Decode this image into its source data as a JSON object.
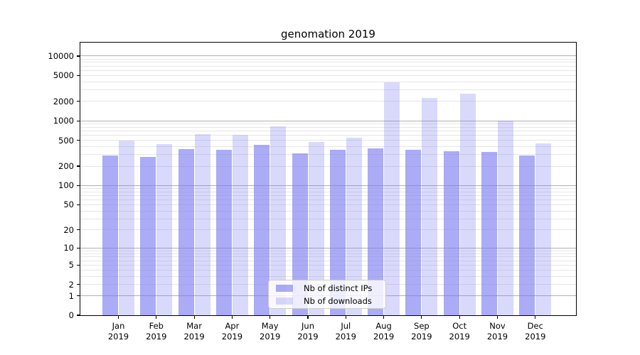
{
  "chart_data": {
    "type": "bar",
    "title": "genomation 2019",
    "categories": [
      "Jan\n2019",
      "Feb\n2019",
      "Mar\n2019",
      "Apr\n2019",
      "May\n2019",
      "Jun\n2019",
      "Jul\n2019",
      "Aug\n2019",
      "Sep\n2019",
      "Oct\n2019",
      "Nov\n2019",
      "Dec\n2019"
    ],
    "series": [
      {
        "name": "Nb of distinct IPs",
        "color": "#a8a8f8",
        "fill": "rgba(120,120,240,0.62)",
        "values": [
          290,
          278,
          367,
          358,
          430,
          316,
          361,
          374,
          355,
          343,
          335,
          293
        ]
      },
      {
        "name": "Nb of downloads",
        "color": "#d9d9f9",
        "fill": "rgba(120,120,240,0.28)",
        "values": [
          497,
          435,
          624,
          608,
          817,
          473,
          546,
          3950,
          2240,
          2630,
          1000,
          445
        ]
      }
    ],
    "xlabel": "",
    "ylabel": "",
    "yscale": "log(value+1)",
    "ylim": [
      0,
      16000
    ],
    "yticks": [
      0,
      1,
      2,
      5,
      10,
      20,
      50,
      100,
      200,
      500,
      1000,
      2000,
      5000,
      10000
    ],
    "grid": {
      "visible": true,
      "which": "both",
      "major_color": "#b0b0b0",
      "minor_color": "#e6e6e6"
    },
    "legend_position": "lower center",
    "spine_color": "#000000",
    "background_color": "#ffffff"
  }
}
